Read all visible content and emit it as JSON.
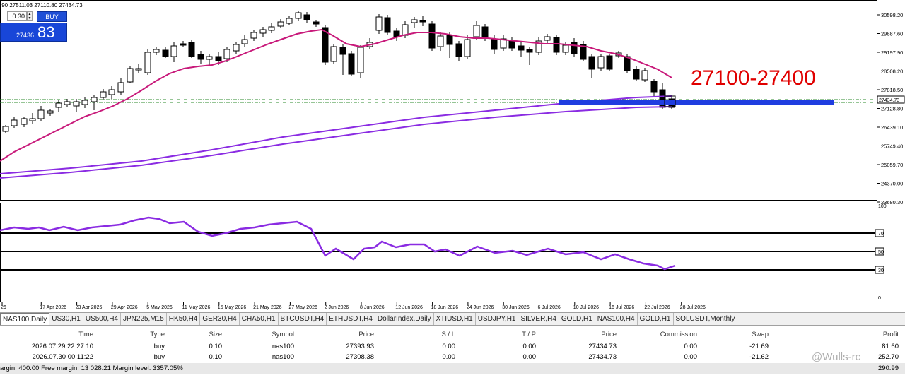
{
  "chart": {
    "ohlc_text": ".90 27511.03 27110.80 27434.73",
    "lot_value": "0.30",
    "buy_label": "BUY",
    "buy_price_small": "27436",
    "buy_price_big": "83",
    "annotation": "27100-27400",
    "price_ticks": [
      "30598.20",
      "29887.60",
      "29197.90",
      "28508.20",
      "27818.50",
      "27128.80",
      "26439.10",
      "25749.40",
      "25059.70",
      "24370.00",
      "23680.30"
    ],
    "current_price_label": "27434.73",
    "rsi_ticks": [
      "100",
      "70",
      "50",
      "30",
      "0"
    ],
    "date_labels": [
      "26",
      "17 Apr 2026",
      "23 Apr 2026",
      "29 Apr 2026",
      "5 May 2026",
      "11 May 2026",
      "15 May 2026",
      "21 May 2026",
      "27 May 2026",
      "2 Jun 2026",
      "8 Jun 2026",
      "12 Jun 2026",
      "18 Jun 2026",
      "24 Jun 2026",
      "30 Jun 2026",
      "6 Jul 2026",
      "10 Jul 2026",
      "16 Jul 2026",
      "22 Jul 2026",
      "28 Jul 2026"
    ],
    "colors": {
      "ma_fast": "#c8197a",
      "ma_slow": "#8a2be2",
      "rsi": "#8a2be2",
      "zone": "#1f3de0",
      "annotation": "#e00000"
    }
  },
  "tabs": [
    "NAS100,Daily",
    "US30,H1",
    "US500,H4",
    "JPN225,M15",
    "HK50,H4",
    "GER30,H4",
    "CHA50,H1",
    "BTCUSDT,H4",
    "ETHUSDT,H4",
    "DollarIndex,Daily",
    "XTIUSD,H1",
    "USDJPY,H1",
    "SILVER,H4",
    "GOLD,H1",
    "NAS100,H4",
    "GOLD,H1",
    "SOLUSDT,Monthly"
  ],
  "table": {
    "headers": {
      "time": "Time",
      "type": "Type",
      "size": "Size",
      "symbol": "Symbol",
      "price": "Price",
      "sl": "S / L",
      "tp": "T / P",
      "cur_price": "Price",
      "commission": "Commission",
      "swap": "Swap",
      "profit": "Profit"
    },
    "rows": [
      {
        "time": "2026.07.29 22:27:10",
        "type": "buy",
        "size": "0.10",
        "symbol": "nas100",
        "price": "27393.93",
        "sl": "0.00",
        "tp": "0.00",
        "cur_price": "27434.73",
        "commission": "0.00",
        "swap": "-21.69",
        "profit": "81.60"
      },
      {
        "time": "2026.07.30 00:11:22",
        "type": "buy",
        "size": "0.10",
        "symbol": "nas100",
        "price": "27308.38",
        "sl": "0.00",
        "tp": "0.00",
        "cur_price": "27434.73",
        "commission": "0.00",
        "swap": "-21.62",
        "profit": "252.70"
      }
    ],
    "footer": {
      "text": "argin: 400.00  Free margin: 13 028.21  Margin level: 3357.05%",
      "total": "290.99"
    }
  },
  "watermark": "@Wulls-rc"
}
